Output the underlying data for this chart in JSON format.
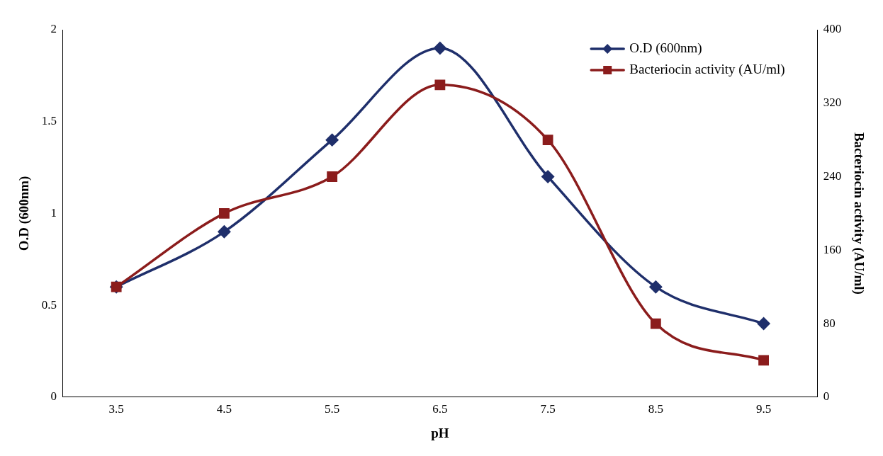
{
  "chart_data": {
    "type": "line",
    "xlabel": "pH",
    "ylabel": "O.D (600nm)",
    "y2label": "Bacteriocin activity (AU/ml)",
    "categories": [
      "3.5",
      "4.5",
      "5.5",
      "6.5",
      "7.5",
      "8.5",
      "9.5"
    ],
    "series": [
      {
        "name": "O.D (600nm)",
        "color": "#1f2f6b",
        "values": [
          0.6,
          0.9,
          1.4,
          1.9,
          1.2,
          0.6,
          0.4
        ],
        "marker": "diamond"
      },
      {
        "name": "Bacteriocin activity (AU/ml)",
        "color": "#8b1c1c",
        "values": [
          120,
          200,
          240,
          340,
          280,
          80,
          40
        ],
        "axis": "y2",
        "marker": "square"
      }
    ],
    "ylim": [
      0,
      2
    ],
    "yticks": [
      0,
      0.5,
      1,
      1.5,
      2
    ],
    "y2lim": [
      0,
      400
    ],
    "y2ticks": [
      0,
      80,
      160,
      240,
      320,
      400
    ],
    "grid": false,
    "legend": "top right",
    "line_style": "solid"
  }
}
